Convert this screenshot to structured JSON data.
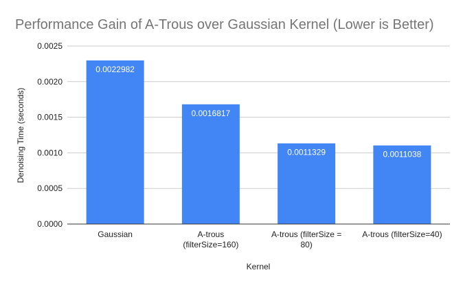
{
  "chart_data": {
    "type": "bar",
    "title": "Performance Gain of A-Trous over Gaussian Kernel (Lower is Better)",
    "xlabel": "Kernel",
    "ylabel": "Denoising Time (seconds)",
    "categories": [
      [
        "Gaussian"
      ],
      [
        "A-trous",
        "(filterSize=160)"
      ],
      [
        "A-trous (filterSize =",
        "80)"
      ],
      [
        "A-trous (filterSize=40)"
      ]
    ],
    "values": [
      0.0022982,
      0.0016817,
      0.0011329,
      0.0011038
    ],
    "data_labels": [
      "0.0022982",
      "0.0016817",
      "0.0011329",
      "0.0011038"
    ],
    "ylim": [
      0,
      0.0025
    ],
    "yticks": [
      {
        "value": 0,
        "label": "0.0000"
      },
      {
        "value": 0.0005,
        "label": "0.0005"
      },
      {
        "value": 0.001,
        "label": "0.0010"
      },
      {
        "value": 0.0015,
        "label": "0.0015"
      },
      {
        "value": 0.002,
        "label": "0.0020"
      },
      {
        "value": 0.0025,
        "label": "0.0025"
      }
    ],
    "grid": true,
    "legend": "none",
    "colors": {
      "bar": "#4285f4",
      "grid": "#cccccc",
      "baseline": "#333333",
      "title": "#757575",
      "text": "#222222"
    }
  }
}
